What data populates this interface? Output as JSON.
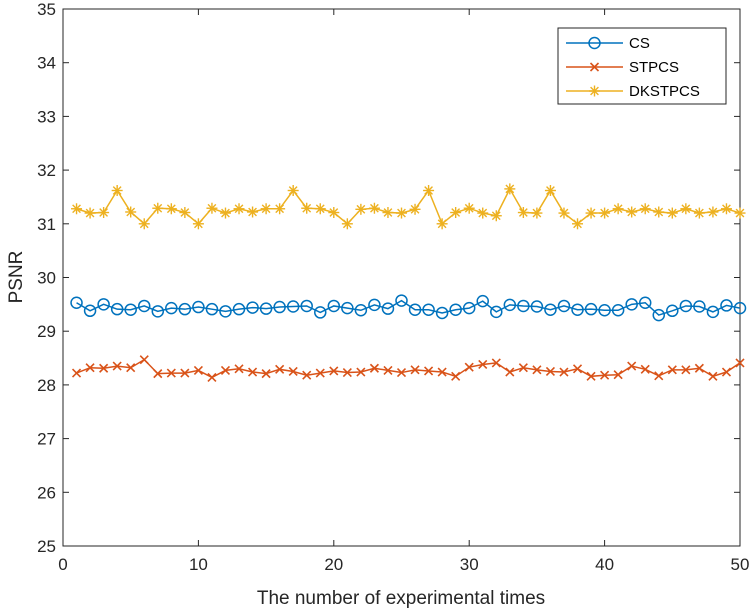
{
  "chart_data": {
    "type": "line",
    "title": "",
    "xlabel": "The number of experimental times",
    "ylabel": "PSNR",
    "xlim": [
      0,
      50
    ],
    "ylim": [
      25,
      35
    ],
    "xticks": [
      0,
      10,
      20,
      30,
      40,
      50
    ],
    "yticks": [
      25,
      26,
      27,
      28,
      29,
      30,
      31,
      32,
      33,
      34,
      35
    ],
    "grid": false,
    "legend": "top-right",
    "x": [
      1,
      2,
      3,
      4,
      5,
      6,
      7,
      8,
      9,
      10,
      11,
      12,
      13,
      14,
      15,
      16,
      17,
      18,
      19,
      20,
      21,
      22,
      23,
      24,
      25,
      26,
      27,
      28,
      29,
      30,
      31,
      32,
      33,
      34,
      35,
      36,
      37,
      38,
      39,
      40,
      41,
      42,
      43,
      44,
      45,
      46,
      47,
      48,
      49,
      50
    ],
    "series": [
      {
        "name": "CS",
        "color": "#0072BD",
        "marker": "circle",
        "values": [
          29.53,
          29.38,
          29.5,
          29.41,
          29.4,
          29.47,
          29.37,
          29.43,
          29.41,
          29.45,
          29.41,
          29.37,
          29.41,
          29.44,
          29.42,
          29.45,
          29.46,
          29.47,
          29.35,
          29.47,
          29.43,
          29.39,
          29.49,
          29.42,
          29.57,
          29.4,
          29.4,
          29.34,
          29.4,
          29.43,
          29.56,
          29.36,
          29.49,
          29.47,
          29.46,
          29.4,
          29.47,
          29.4,
          29.41,
          29.39,
          29.39,
          29.5,
          29.53,
          29.3,
          29.38,
          29.47,
          29.46,
          29.36,
          29.48,
          29.43
        ]
      },
      {
        "name": "STPCS",
        "color": "#D95319",
        "marker": "x",
        "values": [
          28.22,
          28.32,
          28.31,
          28.35,
          28.32,
          28.47,
          28.21,
          28.22,
          28.22,
          28.27,
          28.14,
          28.27,
          28.3,
          28.24,
          28.21,
          28.29,
          28.25,
          28.18,
          28.22,
          28.26,
          28.23,
          28.24,
          28.31,
          28.27,
          28.23,
          28.28,
          28.26,
          28.24,
          28.16,
          28.33,
          28.38,
          28.41,
          28.24,
          28.32,
          28.28,
          28.25,
          28.24,
          28.3,
          28.16,
          28.18,
          28.19,
          28.35,
          28.29,
          28.17,
          28.28,
          28.28,
          28.31,
          28.16,
          28.24,
          28.41
        ]
      },
      {
        "name": "DKSTPCS",
        "color": "#EDB120",
        "marker": "asterisk",
        "values": [
          31.28,
          31.2,
          31.21,
          31.62,
          31.22,
          31.0,
          31.29,
          31.28,
          31.21,
          31.0,
          31.29,
          31.2,
          31.28,
          31.22,
          31.28,
          31.28,
          31.62,
          31.29,
          31.28,
          31.21,
          31.0,
          31.27,
          31.29,
          31.21,
          31.2,
          31.27,
          31.62,
          31.0,
          31.21,
          31.29,
          31.2,
          31.15,
          31.65,
          31.21,
          31.2,
          31.62,
          31.2,
          31.0,
          31.2,
          31.2,
          31.28,
          31.22,
          31.28,
          31.22,
          31.2,
          31.28,
          31.2,
          31.22,
          31.28,
          31.2
        ]
      }
    ]
  }
}
